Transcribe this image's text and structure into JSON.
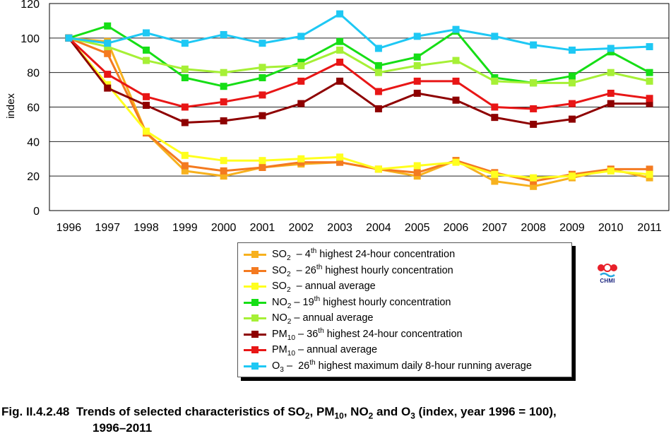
{
  "chart_data": {
    "type": "line",
    "ylabel": "index",
    "ylim": [
      0,
      120
    ],
    "yticks": [
      0,
      20,
      40,
      60,
      80,
      100,
      120
    ],
    "grid": "horizontal",
    "legend_position": "bottom-center",
    "categories": [
      "1996",
      "1997",
      "1998",
      "1999",
      "2000",
      "2001",
      "2002",
      "2003",
      "2004",
      "2005",
      "2006",
      "2007",
      "2008",
      "2009",
      "2010",
      "2011"
    ],
    "series": [
      {
        "name": "SO2 – 4th highest 24-hour concentration",
        "color": "#F7B11E",
        "values": [
          100,
          98,
          45,
          23,
          20,
          25,
          27,
          28,
          24,
          20,
          29,
          17,
          14,
          19,
          24,
          19
        ]
      },
      {
        "name": "SO2 – 26th highest hourly concentration",
        "color": "#F47A20",
        "values": [
          100,
          91,
          45,
          26,
          23,
          25,
          28,
          28,
          24,
          22,
          29,
          22,
          17,
          21,
          24,
          24
        ]
      },
      {
        "name": "SO2 – annual average",
        "color": "#FFFF1E",
        "values": [
          100,
          73,
          46,
          32,
          29,
          29,
          30,
          31,
          24,
          26,
          28,
          21,
          19,
          20,
          23,
          21
        ]
      },
      {
        "name": "NO2 – 19th highest hourly concentration",
        "color": "#16DE16",
        "values": [
          100,
          107,
          93,
          77,
          72,
          77,
          86,
          98,
          84,
          89,
          104,
          77,
          74,
          78,
          92,
          80
        ]
      },
      {
        "name": "NO2 – annual average",
        "color": "#A6F036",
        "values": [
          100,
          95,
          87,
          82,
          80,
          83,
          84,
          93,
          80,
          84,
          87,
          75,
          74,
          74,
          80,
          75
        ]
      },
      {
        "name": "PM10 – 36th highest 24-hour concentration",
        "color": "#8E0000",
        "values": [
          100,
          71,
          61,
          51,
          52,
          55,
          62,
          75,
          59,
          68,
          64,
          54,
          50,
          53,
          62,
          62
        ]
      },
      {
        "name": "PM10 – annual average",
        "color": "#E81616",
        "values": [
          100,
          79,
          66,
          60,
          63,
          67,
          75,
          86,
          69,
          75,
          75,
          60,
          59,
          62,
          68,
          65
        ]
      },
      {
        "name": "O3 – 26th highest maximum daily 8-hour running average",
        "color": "#1EC8F4",
        "values": [
          100,
          97,
          103,
          97,
          102,
          97,
          101,
          114,
          94,
          101,
          105,
          101,
          96,
          93,
          94,
          95
        ]
      }
    ]
  },
  "legend": {
    "items": [
      {
        "pre": "SO",
        "sub": "2",
        "mid": "  – 4",
        "sup": "th",
        "post": " highest 24-hour concentration"
      },
      {
        "pre": "SO",
        "sub": "2",
        "mid": "  – 26",
        "sup": "th",
        "post": " highest hourly concentration"
      },
      {
        "pre": "SO",
        "sub": "2",
        "mid": "  – annual average",
        "sup": "",
        "post": ""
      },
      {
        "pre": "NO",
        "sub": "2",
        "mid": " – 19",
        "sup": "th",
        "post": " highest hourly concentration"
      },
      {
        "pre": "NO",
        "sub": "2",
        "mid": " – annual average",
        "sup": "",
        "post": ""
      },
      {
        "pre": "PM",
        "sub": "10",
        "mid": " – 36",
        "sup": "th",
        "post": " highest 24-hour concentration"
      },
      {
        "pre": "PM",
        "sub": "10",
        "mid": " – annual average",
        "sup": "",
        "post": ""
      },
      {
        "pre": "O",
        "sub": "3",
        "mid": " –  26",
        "sup": "th",
        "post": " highest maximum daily 8-hour running average"
      }
    ]
  },
  "logo": {
    "text": "CHMI",
    "colors": {
      "red": "#E8202A",
      "blue": "#29A8E0"
    }
  },
  "caption": {
    "label": "Fig. II.4.2.48",
    "line1_a": "Trends of selected characteristics of SO",
    "sub1": "2",
    "line1_b": ", PM",
    "sub2": "10",
    "line1_c": ", NO",
    "sub3": "2",
    "line1_d": " and O",
    "sub4": "3",
    "line1_e": " (index, year 1996 = 100),",
    "line2": "1996–2011"
  }
}
